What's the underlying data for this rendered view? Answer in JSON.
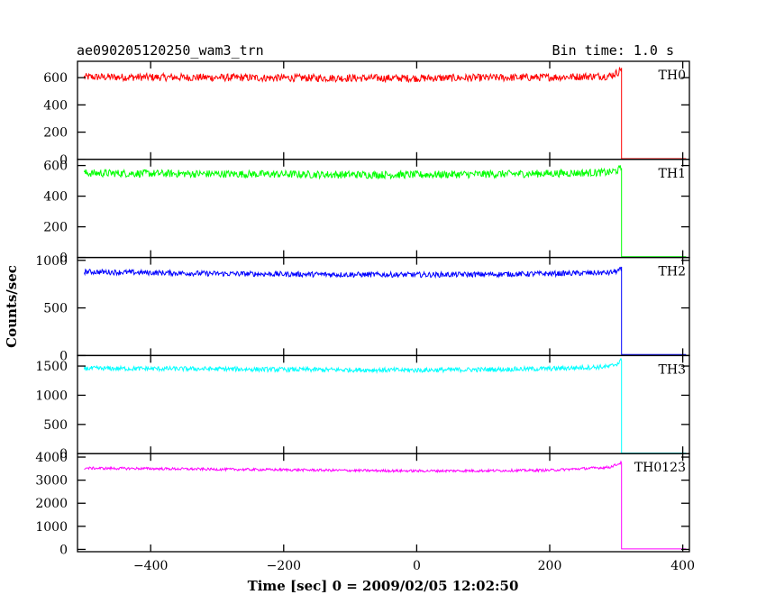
{
  "chart_data": {
    "type": "line",
    "title": "ae090205120250_wam3_trn",
    "subtitle": "Bin time: 1.0 s",
    "xlabel": "Time [sec] 0 = 2009/02/05 12:02:50",
    "ylabel": "Counts/sec",
    "xlim": [
      -510,
      410
    ],
    "x_ticks": [
      -400,
      -200,
      0,
      200,
      400
    ],
    "x": [
      -500,
      -400,
      -300,
      -200,
      -100,
      0,
      100,
      200,
      290,
      303,
      308,
      309,
      405
    ],
    "grid": false,
    "panels": [
      {
        "name": "TH0",
        "color": "#ff0000",
        "ylim": [
          0,
          720
        ],
        "y_ticks": [
          0,
          200,
          400,
          600
        ],
        "values": [
          605,
          603,
          601,
          598,
          597,
          596,
          599,
          603,
          612,
          640,
          675,
          5,
          5
        ],
        "noise": 28
      },
      {
        "name": "TH1",
        "color": "#00ff00",
        "ylim": [
          0,
          640
        ],
        "y_ticks": [
          0,
          200,
          400,
          600
        ],
        "values": [
          550,
          548,
          545,
          543,
          540,
          540,
          543,
          548,
          555,
          570,
          585,
          5,
          5
        ],
        "noise": 25
      },
      {
        "name": "TH2",
        "color": "#0000ff",
        "ylim": [
          0,
          1030
        ],
        "y_ticks": [
          0,
          500,
          1000
        ],
        "values": [
          880,
          870,
          860,
          855,
          850,
          848,
          852,
          860,
          870,
          890,
          905,
          10,
          10
        ],
        "noise": 28
      },
      {
        "name": "TH3",
        "color": "#00ffff",
        "ylim": [
          0,
          1680
        ],
        "y_ticks": [
          0,
          500,
          1000,
          1500
        ],
        "values": [
          1460,
          1455,
          1450,
          1440,
          1435,
          1430,
          1440,
          1455,
          1490,
          1550,
          1600,
          10,
          10
        ],
        "noise": 40
      },
      {
        "name": "TH0123",
        "color": "#ff00ff",
        "ylim": [
          -100,
          4150
        ],
        "y_ticks": [
          0,
          1000,
          2000,
          3000,
          4000
        ],
        "values": [
          3520,
          3500,
          3470,
          3450,
          3420,
          3400,
          3410,
          3430,
          3560,
          3700,
          3770,
          20,
          20
        ],
        "noise": 55
      }
    ]
  }
}
